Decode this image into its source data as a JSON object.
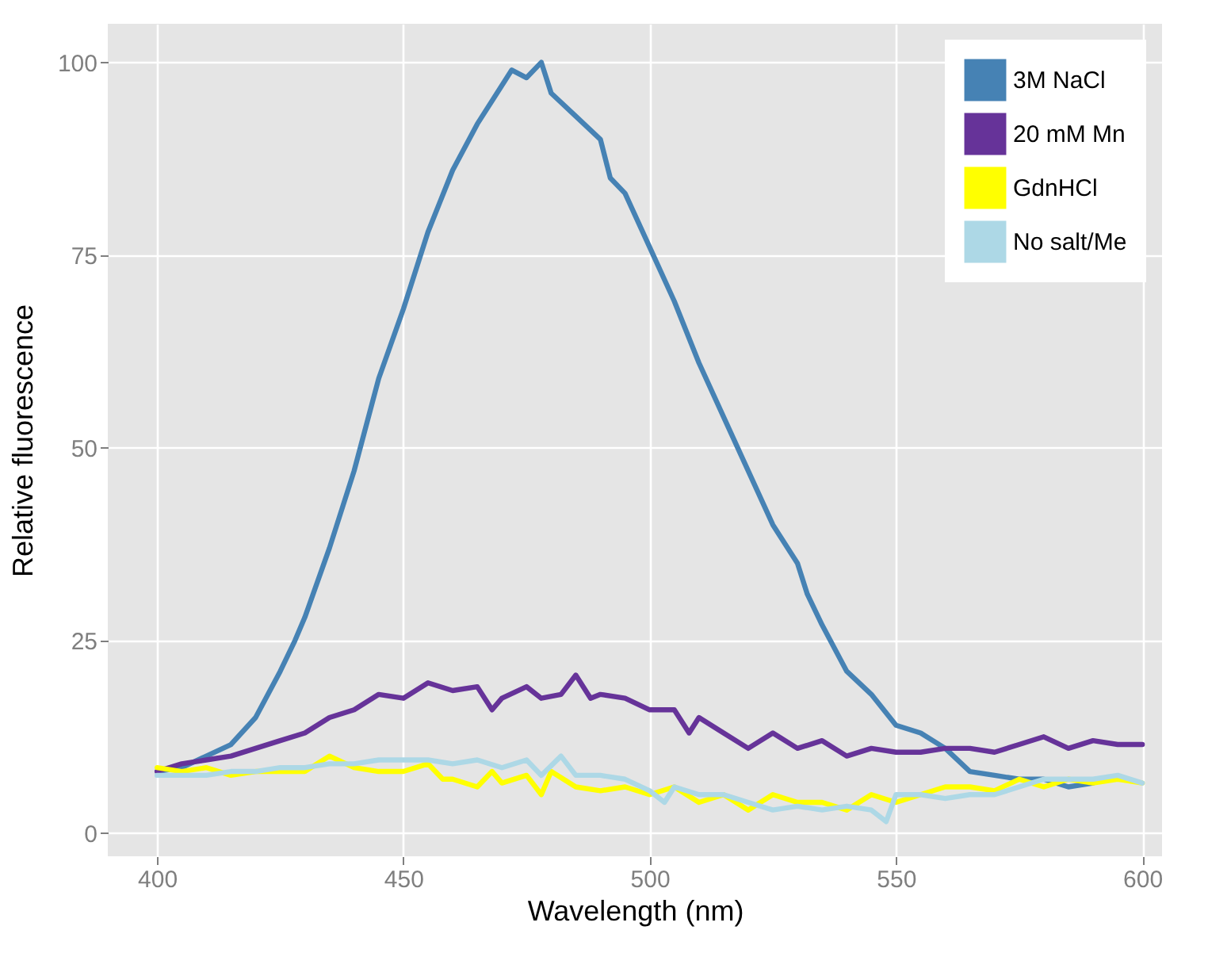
{
  "chart_data": {
    "type": "line",
    "xlabel": "Wavelength (nm)",
    "ylabel": "Relative fluorescence",
    "xlim": [
      390,
      604
    ],
    "ylim": [
      -3,
      105
    ],
    "xticks": [
      400,
      450,
      500,
      550,
      600
    ],
    "yticks": [
      0,
      25,
      50,
      75,
      100
    ],
    "grid": true,
    "legend": "top right",
    "line_style": "solid",
    "series": [
      {
        "name": "3M NaCl",
        "color": "#4682b4",
        "x": [
          400,
          405,
          410,
          415,
          420,
          425,
          428,
          430,
          435,
          440,
          445,
          450,
          455,
          460,
          465,
          470,
          472,
          475,
          478,
          480,
          485,
          490,
          492,
          495,
          500,
          505,
          510,
          515,
          520,
          525,
          530,
          532,
          535,
          540,
          545,
          550,
          555,
          560,
          565,
          570,
          575,
          580,
          585,
          590
        ],
        "values": [
          8,
          8.5,
          10,
          11.5,
          15,
          21,
          25,
          28,
          37,
          47,
          59,
          68,
          78,
          86,
          92,
          97,
          99,
          98,
          100,
          96,
          93,
          90,
          85,
          83,
          76,
          69,
          61,
          54,
          47,
          40,
          35,
          31,
          27,
          21,
          18,
          14,
          13,
          11,
          8,
          7.5,
          7,
          7,
          6,
          6.5
        ]
      },
      {
        "name": "20 mM Mn",
        "color": "#663399",
        "x": [
          400,
          405,
          410,
          415,
          420,
          425,
          430,
          435,
          440,
          445,
          450,
          455,
          460,
          465,
          468,
          470,
          475,
          478,
          482,
          485,
          488,
          490,
          495,
          500,
          505,
          508,
          510,
          515,
          520,
          525,
          530,
          535,
          540,
          545,
          550,
          555,
          560,
          565,
          570,
          575,
          580,
          585,
          590,
          595,
          600
        ],
        "values": [
          8,
          9,
          9.5,
          10,
          11,
          12,
          13,
          15,
          16,
          18,
          17.5,
          19.5,
          18.5,
          19,
          16,
          17.5,
          19,
          17.5,
          18,
          20.5,
          17.5,
          18,
          17.5,
          16,
          16,
          13,
          15,
          13,
          11,
          13,
          11,
          12,
          10,
          11,
          10.5,
          10.5,
          11,
          11,
          10.5,
          11.5,
          12.5,
          11,
          12,
          11.5,
          11.5
        ]
      },
      {
        "name": "GdnHCl",
        "color": "#ffff00",
        "x": [
          400,
          405,
          410,
          415,
          420,
          425,
          430,
          435,
          440,
          445,
          450,
          455,
          458,
          460,
          465,
          468,
          470,
          475,
          478,
          480,
          485,
          490,
          495,
          500,
          505,
          510,
          515,
          520,
          525,
          530,
          535,
          540,
          545,
          550,
          555,
          560,
          565,
          570,
          575,
          580,
          585,
          590,
          595,
          600
        ],
        "values": [
          8.5,
          8,
          8.5,
          7.5,
          8,
          8,
          8,
          10,
          8.5,
          8,
          8,
          9,
          7,
          7,
          6,
          8,
          6.5,
          7.5,
          5,
          8,
          6,
          5.5,
          6,
          5,
          6,
          4,
          5,
          3,
          5,
          4,
          4,
          3,
          5,
          4,
          5,
          6,
          6,
          5.5,
          7,
          6,
          7,
          6.5,
          7,
          6.5
        ]
      },
      {
        "name": "No salt/Me",
        "color": "#add8e6",
        "x": [
          400,
          405,
          410,
          415,
          420,
          425,
          430,
          435,
          440,
          445,
          450,
          455,
          460,
          465,
          470,
          475,
          478,
          482,
          485,
          490,
          495,
          500,
          503,
          505,
          510,
          515,
          520,
          525,
          530,
          535,
          540,
          545,
          548,
          550,
          555,
          560,
          565,
          570,
          575,
          580,
          585,
          590,
          595,
          600
        ],
        "values": [
          7.5,
          7.5,
          7.5,
          8,
          8,
          8.5,
          8.5,
          9,
          9,
          9.5,
          9.5,
          9.5,
          9,
          9.5,
          8.5,
          9.5,
          7.5,
          10,
          7.5,
          7.5,
          7,
          5.5,
          4,
          6,
          5,
          5,
          4,
          3,
          3.5,
          3,
          3.5,
          3,
          1.5,
          5,
          5,
          4.5,
          5,
          5,
          6,
          7,
          7,
          7,
          7.5,
          6.5
        ]
      }
    ]
  }
}
